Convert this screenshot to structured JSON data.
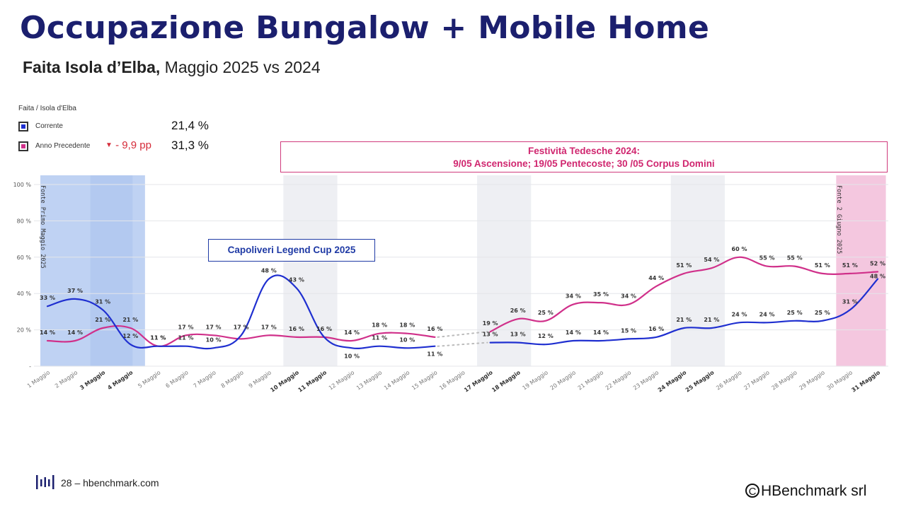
{
  "page": {
    "title": "Occupazione Bungalow + Mobile Home",
    "subtitle_bold": "Faita Isola d’Elba,",
    "subtitle_rest": " Maggio 2025 vs 2024"
  },
  "legend": {
    "group_label": "Faita / Isola d'Elba",
    "current": {
      "label": "Corrente",
      "value": "21,4 %",
      "color": "#1f2fd0"
    },
    "previous": {
      "label": "Anno Precedente",
      "value": "31,3 %",
      "delta": "- 9,9 pp",
      "color": "#d0308a"
    }
  },
  "notes": {
    "festivita_line1": "Festività Tedesche 2024:",
    "festivita_line2": "9/05 Ascensione; 19/05 Pentecoste; 30 /05 Corpus Domini",
    "capoliveri": "Capoliveri Legend Cup 2025"
  },
  "footer": {
    "page_text": "28 – hbenchmark.com",
    "copyright_symbol": "C",
    "copyright_text": "HBenchmark srl"
  },
  "chart_data": {
    "type": "line",
    "title": "",
    "xlabel": "",
    "ylabel": "",
    "ylim": [
      0,
      100
    ],
    "y_ticks": [
      "-",
      "20 %",
      "40 %",
      "60 %",
      "80 %",
      "100 %"
    ],
    "grid": true,
    "categories": [
      "1 Maggio",
      "2 Maggio",
      "3 Maggio",
      "4 Maggio",
      "5 Maggio",
      "6 Maggio",
      "7 Maggio",
      "8 Maggio",
      "9 Maggio",
      "10 Maggio",
      "11 Maggio",
      "12 Maggio",
      "13 Maggio",
      "14 Maggio",
      "15 Maggio",
      "16 Maggio",
      "17 Maggio",
      "18 Maggio",
      "19 Maggio",
      "20 Maggio",
      "21 Maggio",
      "22 Maggio",
      "23 Maggio",
      "24 Maggio",
      "25 Maggio",
      "26 Maggio",
      "27 Maggio",
      "28 Maggio",
      "29 Maggio",
      "30 Maggio",
      "31 Maggio"
    ],
    "bold_categories": [
      "3 Maggio",
      "4 Maggio",
      "10 Maggio",
      "11 Maggio",
      "17 Maggio",
      "18 Maggio",
      "24 Maggio",
      "25 Maggio",
      "31 Maggio"
    ],
    "weekend_bands": [
      [
        "10 Maggio",
        "11 Maggio"
      ],
      [
        "17 Maggio",
        "18 Maggio"
      ],
      [
        "24 Maggio",
        "25 Maggio"
      ]
    ],
    "source_bands": [
      {
        "from": "1 Maggio",
        "to": "4 Maggio",
        "label": "Fonte Primo Maggio 2025",
        "color": "#bcd0f2"
      },
      {
        "from": "30 Maggio",
        "to": "31 Maggio",
        "label": "Fonte 2 Giugno 2025",
        "color": "#f3c4dd"
      }
    ],
    "series": [
      {
        "name": "Corrente",
        "color": "#1f2fd0",
        "values": [
          33,
          37,
          31,
          12,
          11,
          11,
          10,
          17,
          48,
          43,
          16,
          10,
          11,
          10,
          11,
          null,
          13,
          13,
          12,
          14,
          14,
          15,
          16,
          21,
          21,
          24,
          24,
          25,
          25,
          31,
          48
        ],
        "labels": [
          "33 %",
          "37 %",
          "31 %",
          "12 %",
          "11 %",
          "11 %",
          "10 %",
          "17 %",
          "48 %",
          "43 %",
          "16 %",
          "10 %",
          "11 %",
          "10 %",
          "11 %",
          "",
          "13 %",
          "13 %",
          "12 %",
          "14 %",
          "14 %",
          "15 %",
          "16 %",
          "21 %",
          "21 %",
          "24 %",
          "24 %",
          "25 %",
          "25 %",
          "31 %",
          "48 %"
        ]
      },
      {
        "name": "Anno Precedente",
        "color": "#d0308a",
        "values": [
          14,
          14,
          21,
          21,
          11,
          17,
          17,
          15,
          17,
          16,
          16,
          14,
          18,
          18,
          16,
          null,
          19,
          26,
          25,
          34,
          35,
          34,
          44,
          51,
          54,
          60,
          55,
          55,
          51,
          51,
          52
        ],
        "labels": [
          "14 %",
          "14 %",
          "21 %",
          "21 %",
          "11 %",
          "17 %",
          "17 %",
          "",
          "17 %",
          "16 %",
          "",
          "14 %",
          "18 %",
          "18 %",
          "16 %",
          "",
          "19 %",
          "26 %",
          "25 %",
          "34 %",
          "35 %",
          "34 %",
          "44 %",
          "51 %",
          "54 %",
          "60 %",
          "55 %",
          "55 %",
          "51 %",
          "51 %",
          "52 %"
        ]
      }
    ]
  }
}
